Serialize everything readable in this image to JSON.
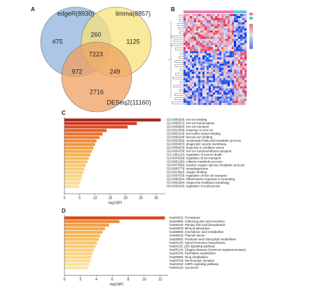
{
  "chart_data": [
    {
      "type": "venn",
      "panel": "A",
      "sets": [
        {
          "name": "edgeR(8930)",
          "color": "#8fb4dc"
        },
        {
          "name": "limma(8857)",
          "color": "#f6e27a"
        },
        {
          "name": "DESeq2(11160)",
          "color": "#f0a060"
        }
      ],
      "regions": [
        475,
        260,
        1125,
        7223,
        972,
        249,
        2716
      ]
    },
    {
      "type": "heatmap",
      "panel": "B"
    },
    {
      "type": "bar",
      "panel": "C",
      "orientation": "horizontal",
      "xlabel": "-log10(P)",
      "categories": [
        "GO:0005506: iron ion binding",
        "GO:0055072: iron ion homeostasis",
        "GO:0006826: iron ion transport",
        "GO:0010039: response to iron ion",
        "GO:0051536: iron-sulfur cluster binding",
        "GO:0008198: ferrous iron binding",
        "GO:0033559: unsaturated fatty acid metabolic process",
        "GO:0030670: phagocytic vesicle membrane",
        "GO:0006979: response to oxidative stress",
        "GO:0034755: iron ion transmembrane transport",
        "GO:1901214: regulation of neuron death",
        "GO:0043269: regulation of ion transport",
        "GO:0051186: cofactor metabolic process",
        "GO:0072593: reactive oxygen species metabolic process",
        "GO:0005776: autophagosome",
        "GO:0019825: oxygen binding",
        "GO:0034756: regulation of iron ion transport",
        "GO:0090594: inflammatory response to wounding",
        "GO:0061684: chaperone-mediated autophagy",
        "GO:0030100: regulation of endocytosis"
      ],
      "values": [
        31.5,
        23.7,
        20.7,
        13.8,
        12.5,
        11.5,
        10.5,
        10,
        9.5,
        9,
        8.5,
        8,
        7.5,
        7,
        6.5,
        6.2,
        5.8,
        5.5,
        5.2,
        4.8
      ],
      "colors": [
        "#a3241c",
        "#c8361e",
        "#d84a22",
        "#e45e28",
        "#e8702e",
        "#ec7e34",
        "#ef8a38",
        "#f0963e",
        "#f2a046",
        "#f3aa4e",
        "#f4b256",
        "#f5ba5e",
        "#f6c066",
        "#f7c66e",
        "#f8cc76",
        "#f8d07e",
        "#f9d486",
        "#f9d88e",
        "#fadc96",
        "#fbe09e"
      ],
      "xlim": [
        0,
        33
      ],
      "xticks": [
        0,
        5,
        10,
        15,
        20,
        25,
        30
      ]
    },
    {
      "type": "bar",
      "panel": "D",
      "orientation": "horizontal",
      "xlabel": "-log10(P)",
      "categories": [
        "hsa04216: Ferroptosis",
        "hsa04966: Collecting duct acid secretion",
        "hsa00120: Primary bile acid biosynthesis",
        "hsa04978: Mineral absorption",
        "hsa00590: Arachidonic acid metabolism",
        "hsa05216: Thyroid cancer",
        "hsa00860: Porphyrin and chlorophyll metabolism",
        "hsa00140: Steroid hormone biosynthesis",
        "hsa04115: p53 signaling pathway",
        "hsa05142: Chagas disease (American trypanosomiasis)",
        "hsa00240: Pyrimidine metabolism",
        "hsa00983: Drug metabolism",
        "hsa04726: Serotonergic synapse",
        "hsa04152: AMPK signaling pathway",
        "hsa04142: Lysosome"
      ],
      "values": [
        12.6,
        6.9,
        5.6,
        5.1,
        4.8,
        4.5,
        4.3,
        4.1,
        3.9,
        3.7,
        3.5,
        3.4,
        3.3,
        3.1,
        2.9
      ],
      "colors": [
        "#d8461e",
        "#ef8a38",
        "#f2a046",
        "#f3aa4e",
        "#f4b256",
        "#f5ba5e",
        "#f6c066",
        "#f7c66e",
        "#f8cc76",
        "#f8d07e",
        "#f9d486",
        "#f9d88e",
        "#fadc96",
        "#fbe09e",
        "#fbe4a6"
      ],
      "xlim": [
        0,
        13
      ],
      "xticks": [
        0,
        2,
        4,
        6,
        8,
        10,
        12
      ]
    }
  ]
}
